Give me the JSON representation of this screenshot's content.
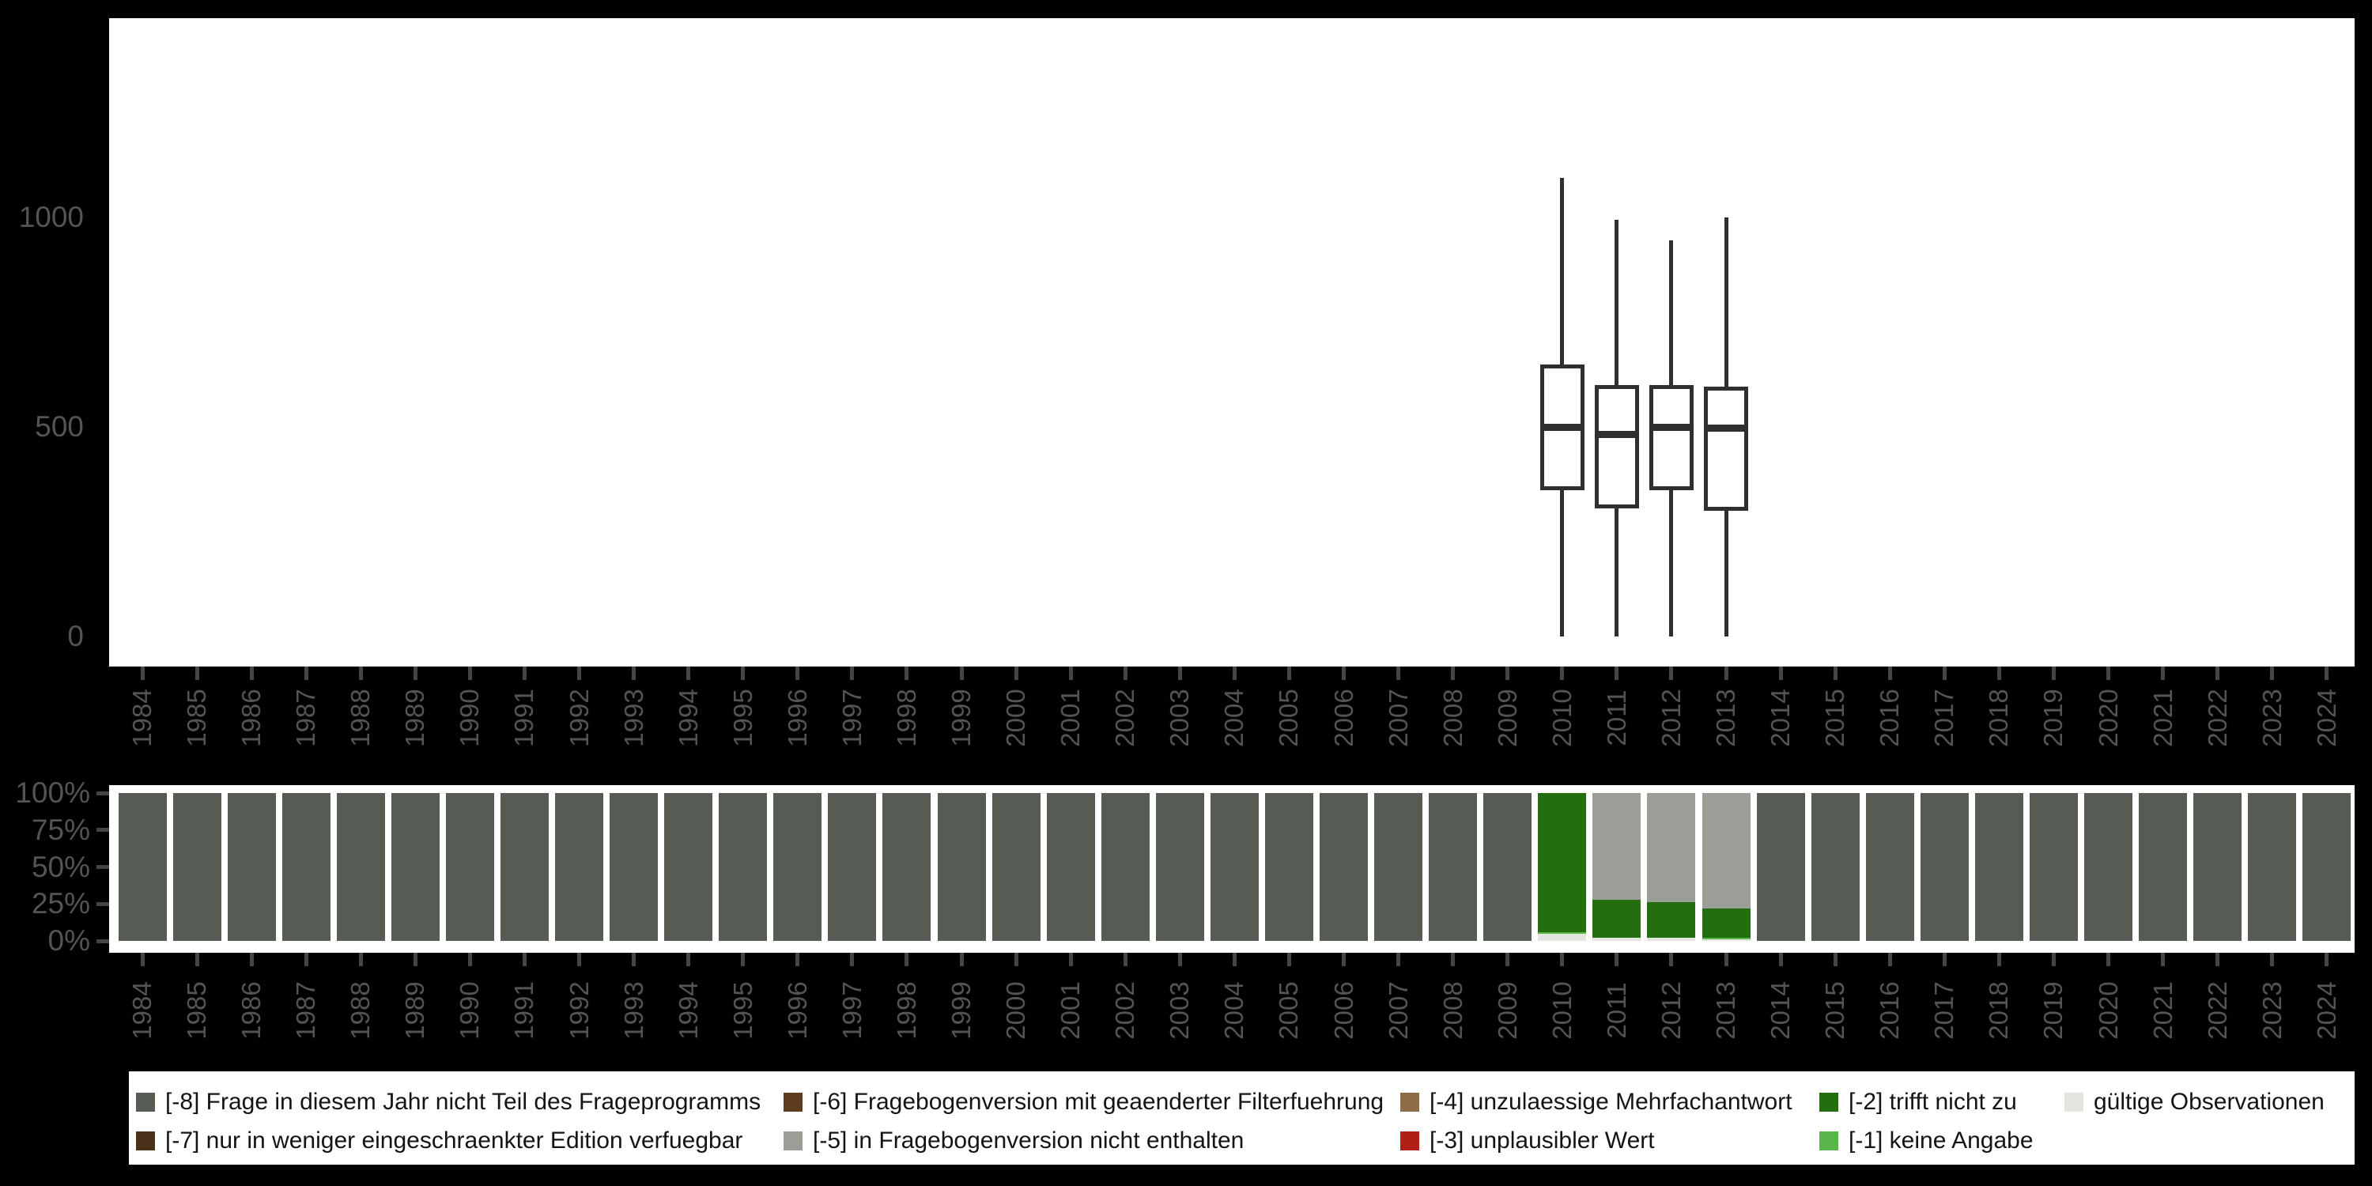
{
  "page": {
    "background": "#000000",
    "plot_background": "#ffffff"
  },
  "colors": {
    "axis_text": "#545454",
    "axis_tick": "#454545",
    "box_stroke": "#2f2f2f",
    "legend_text": "#141414",
    "value_colors": {
      "-8": "#565c54",
      "-7": "#4a3119",
      "-6": "#5e3c1e",
      "-5": "#9a9e97",
      "-4": "#8c6b46",
      "-3": "#b02015",
      "-2": "#256e10",
      "-1": "#5ab54a",
      "valid": "#e2e6df"
    }
  },
  "legend": {
    "columns": [
      {
        "items": [
          {
            "code": "-8",
            "label": "[-8] Frage in diesem Jahr nicht Teil des Frageprogramms",
            "color": "#565c54"
          },
          {
            "code": "-7",
            "label": "[-7] nur in weniger eingeschraenkter Edition verfuegbar",
            "color": "#4a3119"
          }
        ]
      },
      {
        "items": [
          {
            "code": "-6",
            "label": "[-6] Fragebogenversion mit geaenderter Filterfuehrung",
            "color": "#5e3c1e"
          },
          {
            "code": "-5",
            "label": "[-5] in Fragebogenversion nicht enthalten",
            "color": "#9a9e97"
          }
        ]
      },
      {
        "items": [
          {
            "code": "-4",
            "label": "[-4] unzulaessige Mehrfachantwort",
            "color": "#8c6b46"
          },
          {
            "code": "-3",
            "label": "[-3] unplausibler Wert",
            "color": "#b02015"
          }
        ]
      },
      {
        "items": [
          {
            "code": "-2",
            "label": "[-2] trifft nicht zu",
            "color": "#256e10"
          },
          {
            "code": "-1",
            "label": "[-1] keine Angabe",
            "color": "#5ab54a"
          }
        ]
      },
      {
        "items": [
          {
            "code": "valid",
            "label": "gültige Observationen",
            "color": "#e2e6df"
          }
        ]
      }
    ]
  },
  "chart_data": [
    {
      "type": "boxplot",
      "title": "",
      "x_categories": [
        "1984",
        "1985",
        "1986",
        "1987",
        "1988",
        "1989",
        "1990",
        "1991",
        "1992",
        "1993",
        "1994",
        "1995",
        "1996",
        "1997",
        "1998",
        "1999",
        "2000",
        "2001",
        "2002",
        "2003",
        "2004",
        "2005",
        "2006",
        "2007",
        "2008",
        "2009",
        "2010",
        "2011",
        "2012",
        "2013",
        "2014",
        "2015",
        "2016",
        "2017",
        "2018",
        "2019",
        "2020",
        "2021",
        "2022",
        "2023",
        "2024"
      ],
      "ylim": [
        0,
        1475
      ],
      "yticks": [
        0,
        500,
        1000
      ],
      "ytick_labels": [
        "0",
        "500",
        "1000"
      ],
      "grid": false,
      "boxes": [
        {
          "year": "2010",
          "min": 0,
          "q1": 350,
          "median": 500,
          "q3": 650,
          "max": 1095
        },
        {
          "year": "2011",
          "min": 0,
          "q1": 305,
          "median": 483,
          "q3": 600,
          "max": 995
        },
        {
          "year": "2012",
          "min": 0,
          "q1": 350,
          "median": 500,
          "q3": 600,
          "max": 945
        },
        {
          "year": "2013",
          "min": 0,
          "q1": 300,
          "median": 497,
          "q3": 597,
          "max": 1000
        }
      ]
    },
    {
      "type": "bar",
      "stacked": true,
      "unit": "percent",
      "title": "",
      "x_categories": [
        "1984",
        "1985",
        "1986",
        "1987",
        "1988",
        "1989",
        "1990",
        "1991",
        "1992",
        "1993",
        "1994",
        "1995",
        "1996",
        "1997",
        "1998",
        "1999",
        "2000",
        "2001",
        "2002",
        "2003",
        "2004",
        "2005",
        "2006",
        "2007",
        "2008",
        "2009",
        "2010",
        "2011",
        "2012",
        "2013",
        "2014",
        "2015",
        "2016",
        "2017",
        "2018",
        "2019",
        "2020",
        "2021",
        "2022",
        "2023",
        "2024"
      ],
      "ytick_labels": [
        "0%",
        "25%",
        "50%",
        "75%",
        "100%"
      ],
      "yticks": [
        0,
        25,
        50,
        75,
        100
      ],
      "ylim": [
        0,
        100
      ],
      "grid": false,
      "default_segments": [
        {
          "code": "-8",
          "pct": 100
        }
      ],
      "special_bars": {
        "2010": [
          {
            "code": "valid",
            "pct": 5
          },
          {
            "code": "-1",
            "pct": 1
          },
          {
            "code": "-2",
            "pct": 94
          }
        ],
        "2011": [
          {
            "code": "valid",
            "pct": 2
          },
          {
            "code": "-2",
            "pct": 26
          },
          {
            "code": "-5",
            "pct": 72
          }
        ],
        "2012": [
          {
            "code": "valid",
            "pct": 2
          },
          {
            "code": "-2",
            "pct": 24
          },
          {
            "code": "-5",
            "pct": 74
          }
        ],
        "2013": [
          {
            "code": "valid",
            "pct": 1
          },
          {
            "code": "-1",
            "pct": 1
          },
          {
            "code": "-2",
            "pct": 20
          },
          {
            "code": "-5",
            "pct": 78
          }
        ]
      }
    }
  ]
}
